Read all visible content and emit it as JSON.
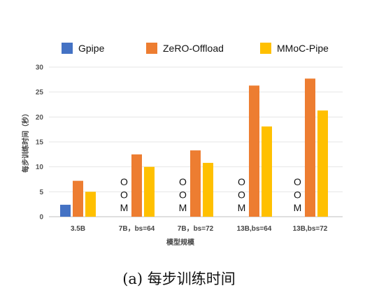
{
  "chart_data": {
    "type": "bar",
    "ylabel": "每步训练时间（秒）",
    "xlabel": "模型规模",
    "ylim": [
      0,
      30
    ],
    "yticks": [
      0,
      5,
      10,
      15,
      20,
      25,
      30
    ],
    "grid": true,
    "legend_position": "top",
    "categories": [
      "3.5B",
      "7B，bs=64",
      "7B，bs=72",
      "13B,bs=64",
      "13B,bs=72"
    ],
    "series": [
      {
        "name": "Gpipe",
        "color": "#4472C4",
        "values": [
          2.4,
          null,
          null,
          null,
          null
        ]
      },
      {
        "name": "ZeRO-Offload",
        "color": "#ED7D31",
        "values": [
          7.2,
          12.5,
          13.3,
          26.3,
          27.7
        ]
      },
      {
        "name": "MMoC-Pipe",
        "color": "#FFC000",
        "values": [
          5.0,
          10.0,
          10.8,
          18.1,
          21.3
        ]
      }
    ],
    "missing_marker": [
      "O",
      "O",
      "M"
    ]
  },
  "caption": "(a) 每步训练时间"
}
